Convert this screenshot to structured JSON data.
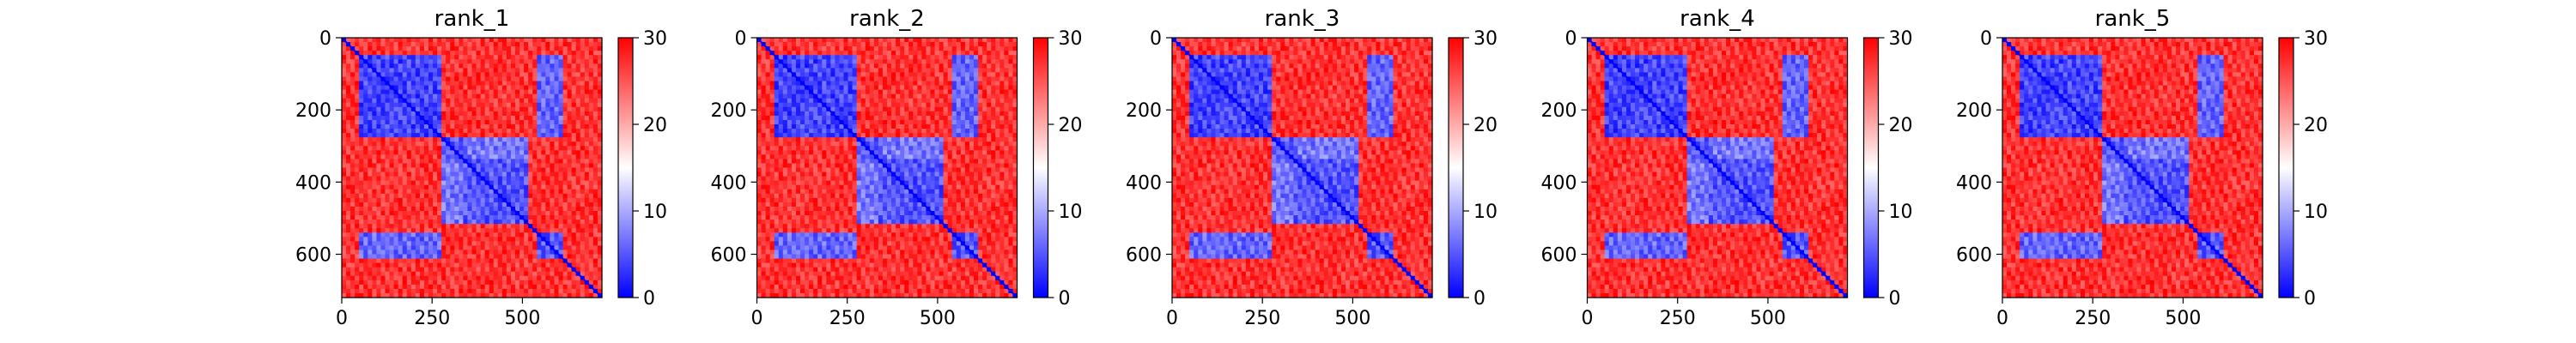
{
  "chart_data": {
    "type": "heatmap",
    "colormap": {
      "low": "#0000ff",
      "mid": "#ffffff",
      "high": "#ff0000"
    },
    "vmin": 0,
    "vmax": 30,
    "colorbar_ticks": [
      0,
      10,
      20,
      30
    ],
    "x_ticks": [
      0,
      250,
      500
    ],
    "y_ticks": [
      0,
      200,
      400,
      600
    ],
    "xlim": [
      0,
      720
    ],
    "ylim": [
      720,
      0
    ],
    "matrix_size": 720,
    "domains": [
      {
        "start": 50,
        "end": 270,
        "value": 4
      },
      {
        "start": 280,
        "end": 330,
        "value": 5
      },
      {
        "start": 340,
        "end": 510,
        "value": 5
      },
      {
        "start": 540,
        "end": 610,
        "value": 5
      }
    ],
    "contacts": [
      {
        "rows": [
          50,
          270
        ],
        "cols": [
          540,
          610
        ],
        "value": 6
      },
      {
        "rows": [
          280,
          510
        ],
        "cols": [
          280,
          510
        ],
        "value": 7
      }
    ],
    "background_value": 27,
    "panels": [
      {
        "title": "rank_1"
      },
      {
        "title": "rank_2"
      },
      {
        "title": "rank_3"
      },
      {
        "title": "rank_4"
      },
      {
        "title": "rank_5"
      }
    ]
  }
}
